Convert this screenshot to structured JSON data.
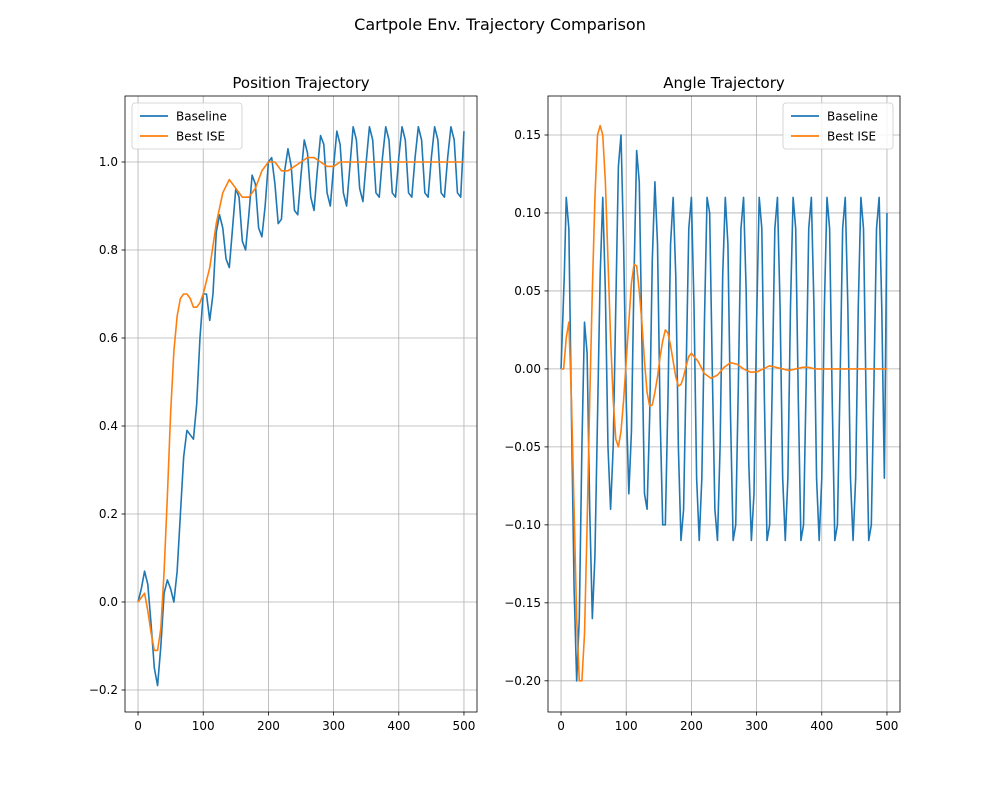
{
  "figure": {
    "title": "Cartpole Env. Trajectory Comparison"
  },
  "chart_data": [
    {
      "type": "line",
      "title": "Position Trajectory",
      "xlabel": "",
      "ylabel": "",
      "xlim": [
        -20,
        520
      ],
      "ylim": [
        -0.25,
        1.15
      ],
      "xticks": [
        0,
        100,
        200,
        300,
        400,
        500
      ],
      "yticks": [
        -0.2,
        0.0,
        0.2,
        0.4,
        0.6,
        0.8,
        1.0
      ],
      "ytick_labels": [
        "−0.2",
        "0.0",
        "0.2",
        "0.4",
        "0.6",
        "0.8",
        "1.0"
      ],
      "grid": true,
      "legend_position": "upper-left",
      "series": [
        {
          "name": "Baseline",
          "color": "#1f77b4",
          "x": [
            0,
            5,
            10,
            15,
            20,
            25,
            30,
            35,
            40,
            45,
            50,
            55,
            60,
            65,
            70,
            75,
            80,
            85,
            90,
            95,
            100,
            105,
            110,
            115,
            120,
            125,
            130,
            135,
            140,
            145,
            150,
            155,
            160,
            165,
            170,
            175,
            180,
            185,
            190,
            195,
            200,
            205,
            210,
            215,
            220,
            225,
            230,
            235,
            240,
            245,
            250,
            255,
            260,
            265,
            270,
            275,
            280,
            285,
            290,
            295,
            300,
            305,
            310,
            315,
            320,
            325,
            330,
            335,
            340,
            345,
            350,
            355,
            360,
            365,
            370,
            375,
            380,
            385,
            390,
            395,
            400,
            405,
            410,
            415,
            420,
            425,
            430,
            435,
            440,
            445,
            450,
            455,
            460,
            465,
            470,
            475,
            480,
            485,
            490,
            495,
            500
          ],
          "y": [
            0.0,
            0.03,
            0.07,
            0.04,
            -0.05,
            -0.15,
            -0.19,
            -0.1,
            0.02,
            0.05,
            0.03,
            0.0,
            0.07,
            0.2,
            0.33,
            0.39,
            0.38,
            0.37,
            0.45,
            0.6,
            0.7,
            0.7,
            0.64,
            0.7,
            0.84,
            0.88,
            0.85,
            0.78,
            0.76,
            0.85,
            0.94,
            0.92,
            0.82,
            0.8,
            0.88,
            0.97,
            0.95,
            0.85,
            0.83,
            0.9,
            1.0,
            1.01,
            0.95,
            0.86,
            0.87,
            0.98,
            1.03,
            0.99,
            0.89,
            0.88,
            0.97,
            1.05,
            1.02,
            0.92,
            0.89,
            0.98,
            1.06,
            1.04,
            0.93,
            0.9,
            0.99,
            1.07,
            1.04,
            0.93,
            0.9,
            0.99,
            1.08,
            1.05,
            0.94,
            0.91,
            1.0,
            1.08,
            1.05,
            0.93,
            0.92,
            1.01,
            1.08,
            1.05,
            0.93,
            0.92,
            1.01,
            1.08,
            1.05,
            0.93,
            0.92,
            1.01,
            1.08,
            1.05,
            0.93,
            0.92,
            1.01,
            1.08,
            1.05,
            0.93,
            0.92,
            1.01,
            1.08,
            1.05,
            0.93,
            0.92,
            1.07
          ]
        },
        {
          "name": "Best ISE",
          "color": "#ff7f0e",
          "x": [
            0,
            5,
            10,
            15,
            20,
            25,
            30,
            35,
            40,
            45,
            50,
            55,
            60,
            65,
            70,
            75,
            80,
            85,
            90,
            95,
            100,
            110,
            120,
            130,
            140,
            150,
            160,
            170,
            180,
            190,
            200,
            210,
            220,
            230,
            240,
            250,
            260,
            270,
            280,
            290,
            300,
            310,
            320,
            330,
            340,
            350,
            360,
            370,
            380,
            390,
            400,
            420,
            440,
            460,
            480,
            500
          ],
          "y": [
            0.0,
            0.01,
            0.02,
            -0.02,
            -0.07,
            -0.11,
            -0.11,
            -0.06,
            0.07,
            0.24,
            0.43,
            0.57,
            0.65,
            0.69,
            0.7,
            0.7,
            0.69,
            0.67,
            0.67,
            0.68,
            0.7,
            0.76,
            0.86,
            0.93,
            0.96,
            0.94,
            0.92,
            0.92,
            0.94,
            0.98,
            1.0,
            1.0,
            0.98,
            0.98,
            0.99,
            1.0,
            1.01,
            1.01,
            1.0,
            0.99,
            0.99,
            1.0,
            1.0,
            1.0,
            1.0,
            1.0,
            1.0,
            1.0,
            1.0,
            1.0,
            1.0,
            1.0,
            1.0,
            1.0,
            1.0,
            1.0
          ]
        }
      ]
    },
    {
      "type": "line",
      "title": "Angle Trajectory",
      "xlabel": "",
      "ylabel": "",
      "xlim": [
        -20,
        520
      ],
      "ylim": [
        -0.22,
        0.175
      ],
      "xticks": [
        0,
        100,
        200,
        300,
        400,
        500
      ],
      "yticks": [
        -0.2,
        -0.15,
        -0.1,
        -0.05,
        0.0,
        0.05,
        0.1,
        0.15
      ],
      "ytick_labels": [
        "−0.20",
        "−0.15",
        "−0.10",
        "−0.05",
        "0.00",
        "0.05",
        "0.10",
        "0.15"
      ],
      "grid": true,
      "legend_position": "upper-right",
      "series": [
        {
          "name": "Baseline",
          "color": "#1f77b4",
          "x": [
            0,
            5,
            8,
            12,
            16,
            20,
            24,
            28,
            32,
            36,
            40,
            44,
            48,
            52,
            56,
            60,
            64,
            68,
            72,
            76,
            80,
            84,
            88,
            92,
            96,
            100,
            104,
            108,
            112,
            116,
            120,
            124,
            128,
            132,
            136,
            140,
            144,
            148,
            152,
            156,
            160,
            164,
            168,
            172,
            176,
            180,
            184,
            188,
            192,
            196,
            200,
            204,
            208,
            212,
            216,
            220,
            224,
            228,
            232,
            236,
            240,
            244,
            248,
            252,
            256,
            260,
            264,
            268,
            272,
            276,
            280,
            284,
            288,
            292,
            296,
            300,
            304,
            308,
            312,
            316,
            320,
            324,
            328,
            332,
            336,
            340,
            344,
            348,
            352,
            356,
            360,
            364,
            368,
            372,
            376,
            380,
            384,
            388,
            392,
            396,
            400,
            404,
            408,
            412,
            416,
            420,
            424,
            428,
            432,
            436,
            440,
            444,
            448,
            452,
            456,
            460,
            464,
            468,
            472,
            476,
            480,
            484,
            488,
            492,
            496,
            500
          ],
          "y": [
            0.0,
            0.06,
            0.11,
            0.09,
            -0.03,
            -0.14,
            -0.2,
            -0.16,
            -0.05,
            0.03,
            0.01,
            -0.09,
            -0.16,
            -0.12,
            -0.03,
            0.06,
            0.11,
            0.05,
            -0.05,
            -0.09,
            -0.05,
            0.04,
            0.13,
            0.15,
            0.08,
            -0.02,
            -0.08,
            -0.04,
            0.06,
            0.14,
            0.12,
            0.02,
            -0.08,
            -0.09,
            -0.03,
            0.07,
            0.12,
            0.08,
            -0.03,
            -0.1,
            -0.1,
            -0.02,
            0.08,
            0.11,
            0.06,
            -0.05,
            -0.11,
            -0.09,
            0.0,
            0.09,
            0.11,
            0.04,
            -0.07,
            -0.11,
            -0.07,
            0.03,
            0.11,
            0.1,
            0.0,
            -0.09,
            -0.11,
            -0.05,
            0.06,
            0.11,
            0.08,
            -0.03,
            -0.11,
            -0.1,
            -0.01,
            0.09,
            0.11,
            0.05,
            -0.06,
            -0.11,
            -0.08,
            0.03,
            0.11,
            0.09,
            -0.02,
            -0.11,
            -0.1,
            -0.01,
            0.09,
            0.11,
            0.04,
            -0.07,
            -0.11,
            -0.07,
            0.04,
            0.11,
            0.09,
            -0.02,
            -0.11,
            -0.1,
            -0.01,
            0.09,
            0.11,
            0.04,
            -0.07,
            -0.11,
            -0.07,
            0.04,
            0.11,
            0.09,
            -0.02,
            -0.11,
            -0.1,
            -0.01,
            0.09,
            0.11,
            0.04,
            -0.07,
            -0.11,
            -0.07,
            0.04,
            0.11,
            0.09,
            -0.02,
            -0.11,
            -0.1,
            -0.01,
            0.09,
            0.11,
            0.04,
            -0.07,
            0.1
          ]
        },
        {
          "name": "Best ISE",
          "color": "#ff7f0e",
          "x": [
            0,
            4,
            8,
            12,
            16,
            20,
            24,
            28,
            32,
            36,
            40,
            44,
            48,
            52,
            56,
            60,
            64,
            68,
            72,
            76,
            80,
            84,
            88,
            92,
            96,
            100,
            104,
            108,
            112,
            116,
            120,
            124,
            128,
            132,
            136,
            140,
            144,
            148,
            152,
            156,
            160,
            164,
            168,
            172,
            176,
            180,
            184,
            188,
            192,
            196,
            200,
            210,
            220,
            230,
            240,
            250,
            260,
            270,
            280,
            290,
            300,
            310,
            320,
            330,
            340,
            350,
            360,
            370,
            380,
            390,
            400,
            420,
            440,
            460,
            480,
            500
          ],
          "y": [
            0.0,
            0.0,
            0.02,
            0.03,
            -0.02,
            -0.09,
            -0.16,
            -0.2,
            -0.2,
            -0.17,
            -0.1,
            -0.02,
            0.05,
            0.11,
            0.15,
            0.156,
            0.15,
            0.12,
            0.07,
            0.02,
            -0.02,
            -0.045,
            -0.05,
            -0.04,
            -0.02,
            0.005,
            0.03,
            0.055,
            0.067,
            0.066,
            0.05,
            0.03,
            0.005,
            -0.015,
            -0.024,
            -0.023,
            -0.015,
            -0.005,
            0.008,
            0.018,
            0.025,
            0.023,
            0.015,
            0.005,
            -0.005,
            -0.011,
            -0.01,
            -0.005,
            0.002,
            0.008,
            0.01,
            0.005,
            -0.003,
            -0.006,
            -0.004,
            0.001,
            0.004,
            0.003,
            0.0,
            -0.002,
            -0.002,
            0.0,
            0.002,
            0.001,
            0.0,
            -0.001,
            0.0,
            0.001,
            0.001,
            0.0,
            0.0,
            0.0,
            0.0,
            0.0,
            0.0,
            0.0
          ]
        }
      ]
    }
  ]
}
